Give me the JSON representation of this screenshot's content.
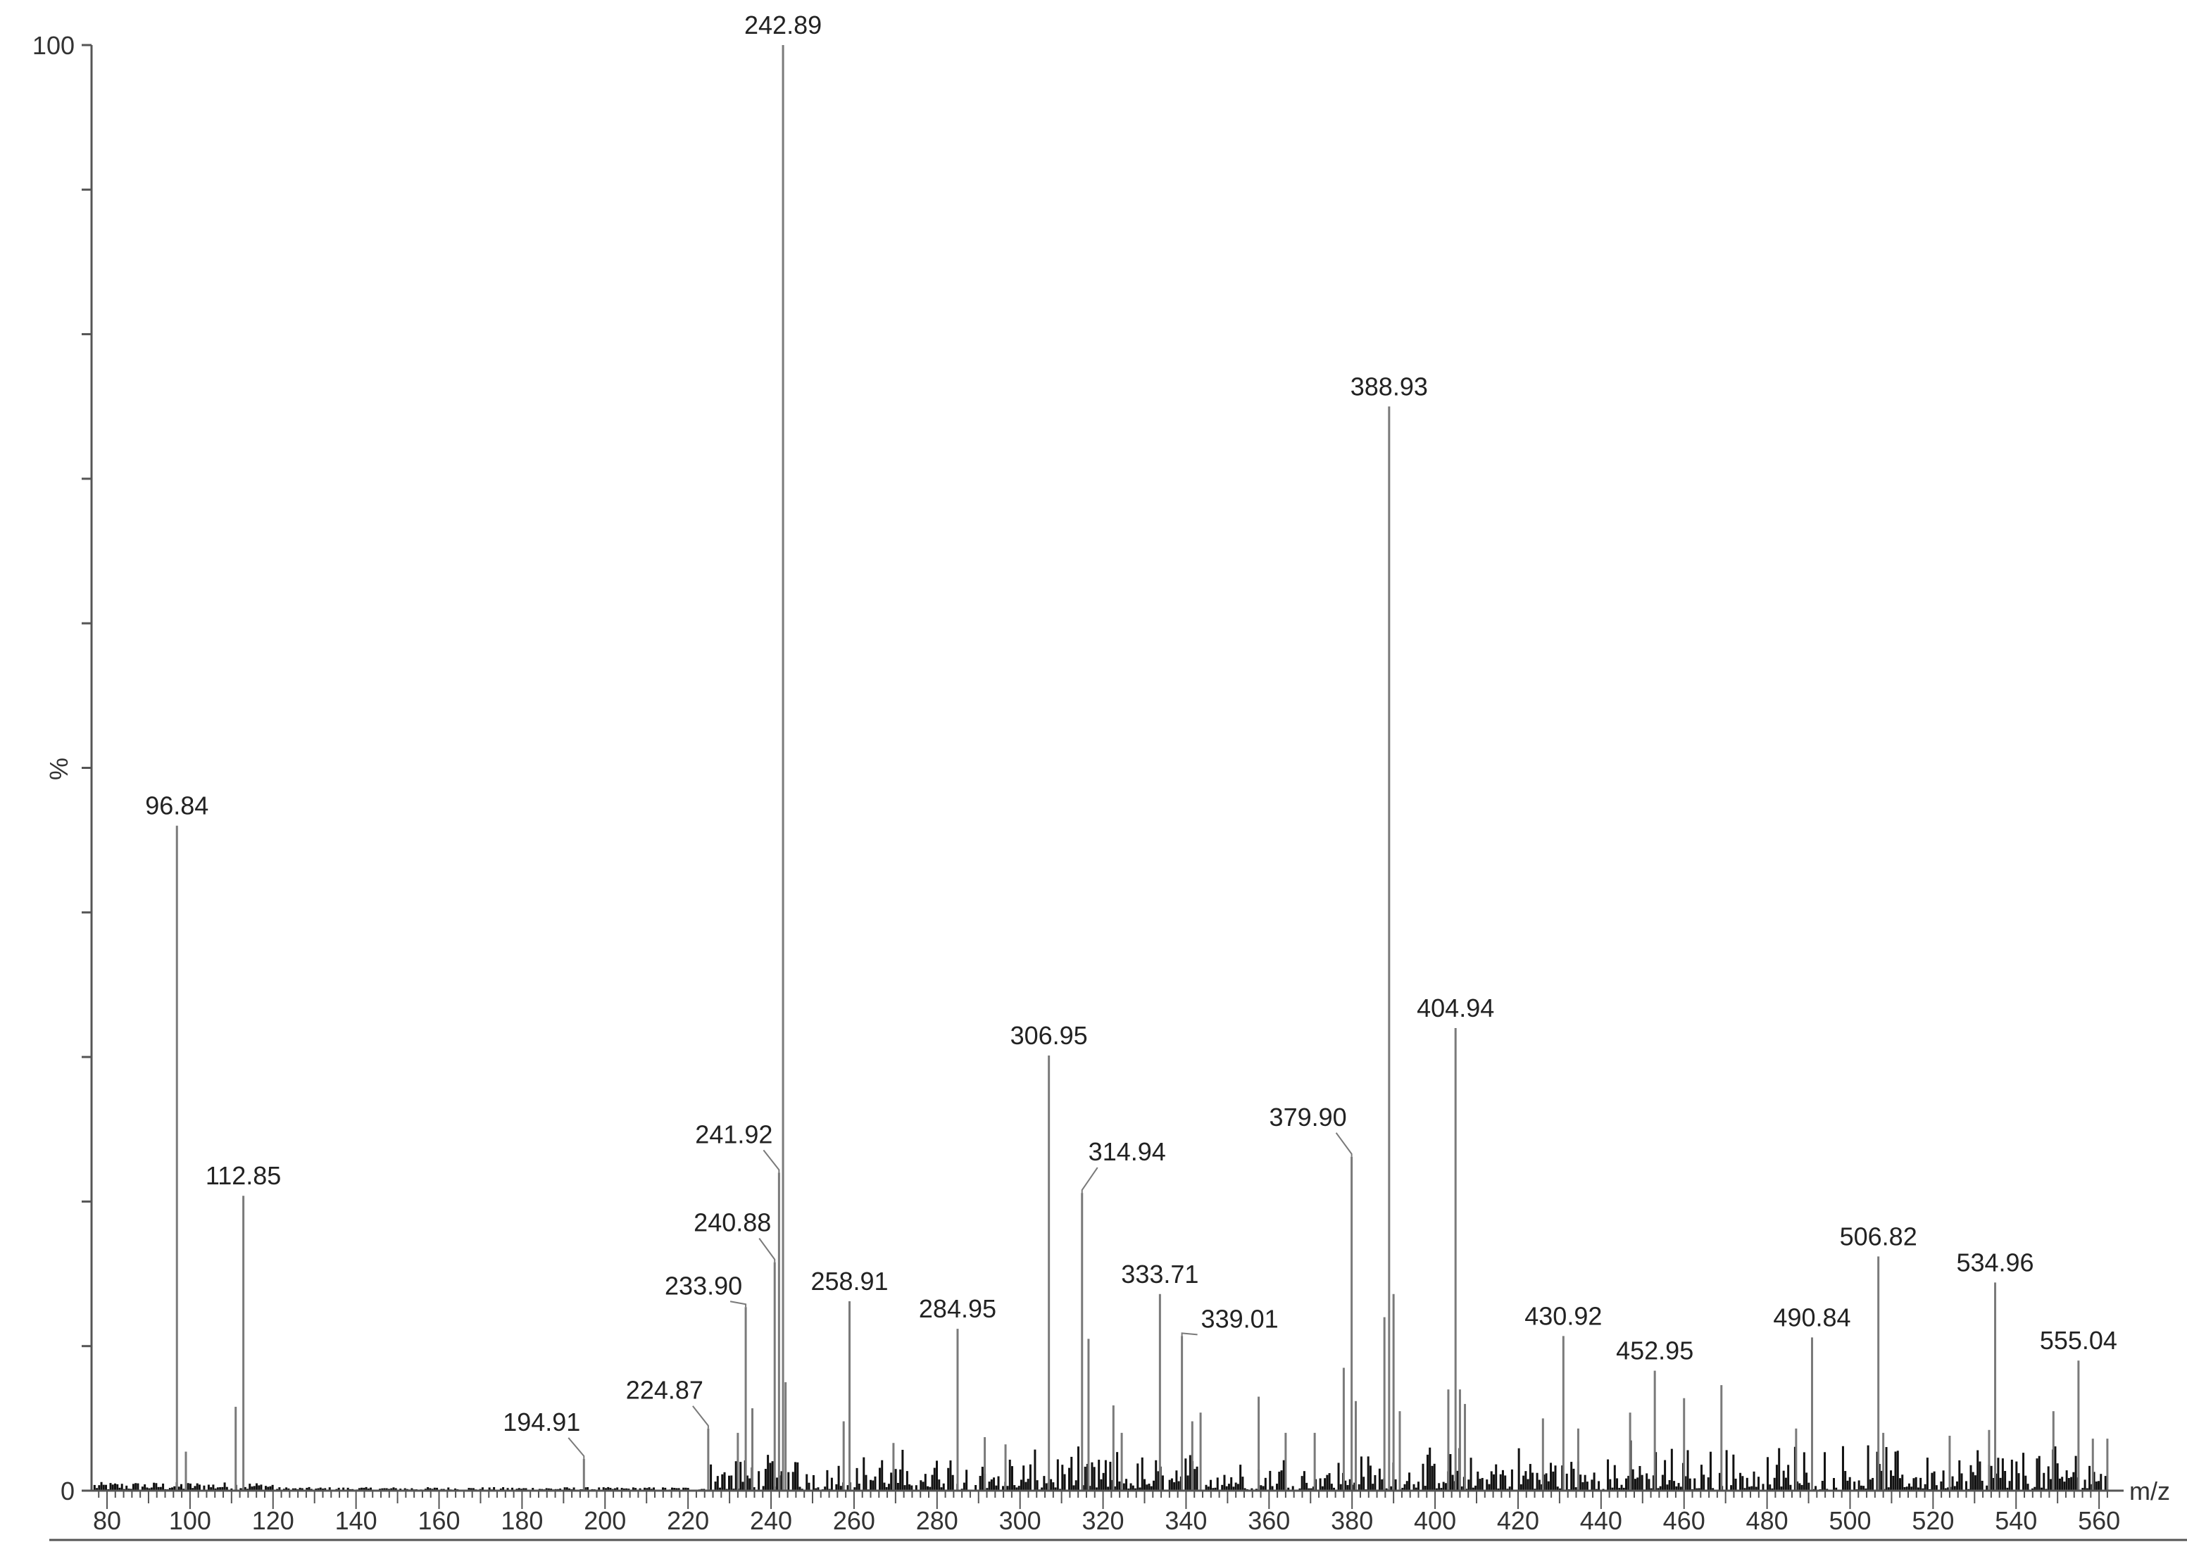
{
  "chart_data": {
    "type": "bar",
    "title": "",
    "xlabel": "m/z",
    "ylabel": "%",
    "xlim": [
      76,
      563
    ],
    "ylim": [
      0,
      100
    ],
    "y_ticks_labeled": [
      "0",
      "100"
    ],
    "x_ticks": [
      "80",
      "100",
      "120",
      "140",
      "160",
      "180",
      "200",
      "220",
      "240",
      "260",
      "280",
      "300",
      "320",
      "340",
      "360",
      "380",
      "400",
      "420",
      "440",
      "460",
      "480",
      "500",
      "520",
      "540",
      "560"
    ],
    "grid": false,
    "colors": {
      "peak": "#7a7a7a",
      "noise": "#111111",
      "axis": "#555555"
    },
    "labeled_peaks": [
      {
        "mz": 96.84,
        "label": "96.84",
        "intensity": 46.0
      },
      {
        "mz": 112.85,
        "label": "112.85",
        "intensity": 20.4
      },
      {
        "mz": 194.91,
        "label": "194.91",
        "intensity": 2.2
      },
      {
        "mz": 224.87,
        "label": "224.87",
        "intensity": 4.3
      },
      {
        "mz": 233.9,
        "label": "233.90",
        "intensity": 12.7
      },
      {
        "mz": 240.88,
        "label": "240.88",
        "intensity": 15.8
      },
      {
        "mz": 241.92,
        "label": "241.92",
        "intensity": 22.0
      },
      {
        "mz": 242.89,
        "label": "242.89",
        "intensity": 100.0
      },
      {
        "mz": 258.91,
        "label": "258.91",
        "intensity": 13.1
      },
      {
        "mz": 284.95,
        "label": "284.95",
        "intensity": 11.2
      },
      {
        "mz": 306.95,
        "label": "306.95",
        "intensity": 30.1
      },
      {
        "mz": 314.94,
        "label": "314.94",
        "intensity": 20.6
      },
      {
        "mz": 333.71,
        "label": "333.71",
        "intensity": 13.6
      },
      {
        "mz": 339.01,
        "label": "339.01",
        "intensity": 10.7
      },
      {
        "mz": 379.9,
        "label": "379.90",
        "intensity": 23.1
      },
      {
        "mz": 388.93,
        "label": "388.93",
        "intensity": 75.0
      },
      {
        "mz": 404.94,
        "label": "404.94",
        "intensity": 32.0
      },
      {
        "mz": 430.92,
        "label": "430.92",
        "intensity": 10.7
      },
      {
        "mz": 452.95,
        "label": "452.95",
        "intensity": 8.3
      },
      {
        "mz": 490.84,
        "label": "490.84",
        "intensity": 10.6
      },
      {
        "mz": 506.82,
        "label": "506.82",
        "intensity": 16.2
      },
      {
        "mz": 534.96,
        "label": "534.96",
        "intensity": 14.4
      },
      {
        "mz": 555.04,
        "label": "555.04",
        "intensity": 9.0
      }
    ],
    "minor_peaks": [
      {
        "mz": 99.0,
        "intensity": 2.7
      },
      {
        "mz": 111.0,
        "intensity": 5.8
      },
      {
        "mz": 232.0,
        "intensity": 4.0
      },
      {
        "mz": 235.5,
        "intensity": 5.7
      },
      {
        "mz": 243.5,
        "intensity": 7.5
      },
      {
        "mz": 257.5,
        "intensity": 4.8
      },
      {
        "mz": 269.5,
        "intensity": 3.3
      },
      {
        "mz": 291.5,
        "intensity": 3.7
      },
      {
        "mz": 296.5,
        "intensity": 3.2
      },
      {
        "mz": 316.5,
        "intensity": 10.5
      },
      {
        "mz": 322.5,
        "intensity": 5.9
      },
      {
        "mz": 324.5,
        "intensity": 4.0
      },
      {
        "mz": 341.5,
        "intensity": 4.8
      },
      {
        "mz": 343.5,
        "intensity": 5.4
      },
      {
        "mz": 357.5,
        "intensity": 6.5
      },
      {
        "mz": 364.0,
        "intensity": 4.0
      },
      {
        "mz": 371.0,
        "intensity": 4.0
      },
      {
        "mz": 378.0,
        "intensity": 8.5
      },
      {
        "mz": 380.9,
        "intensity": 6.2
      },
      {
        "mz": 387.8,
        "intensity": 12.0
      },
      {
        "mz": 390.0,
        "intensity": 13.6
      },
      {
        "mz": 391.5,
        "intensity": 5.5
      },
      {
        "mz": 403.2,
        "intensity": 7.0
      },
      {
        "mz": 406.0,
        "intensity": 7.0
      },
      {
        "mz": 407.2,
        "intensity": 6.0
      },
      {
        "mz": 426.0,
        "intensity": 5.0
      },
      {
        "mz": 434.5,
        "intensity": 4.3
      },
      {
        "mz": 447.0,
        "intensity": 5.4
      },
      {
        "mz": 460.0,
        "intensity": 6.4
      },
      {
        "mz": 469.0,
        "intensity": 7.3
      },
      {
        "mz": 487.0,
        "intensity": 4.3
      },
      {
        "mz": 508.0,
        "intensity": 4.0
      },
      {
        "mz": 524.0,
        "intensity": 3.8
      },
      {
        "mz": 533.5,
        "intensity": 4.2
      },
      {
        "mz": 549.0,
        "intensity": 5.5
      },
      {
        "mz": 558.5,
        "intensity": 3.6
      },
      {
        "mz": 562.0,
        "intensity": 3.6
      }
    ]
  }
}
